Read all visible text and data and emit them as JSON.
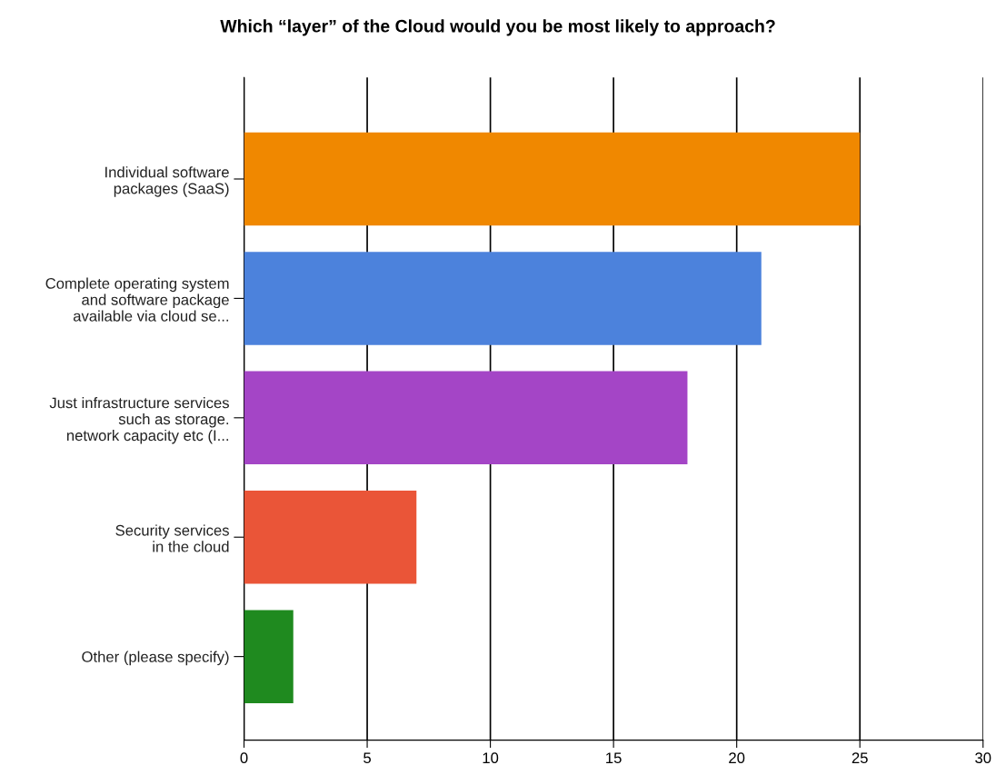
{
  "chart_data": {
    "type": "bar",
    "orientation": "horizontal",
    "title": "Which “layer” of the Cloud would you be most likely to approach?",
    "categories": [
      "Individual software\npackages (SaaS)",
      "Complete operating system\nand software package\navailable via cloud se...",
      "Just infrastructure services\nsuch as storage.\nnetwork capacity etc (I...",
      "Security services\nin the cloud",
      "Other (please specify)"
    ],
    "values": [
      25,
      21,
      18,
      7,
      2
    ],
    "colors": [
      "#f08800",
      "#4c82dc",
      "#a445c6",
      "#ea5538",
      "#1f8a1f"
    ],
    "xlim": [
      0,
      30
    ],
    "xticks": [
      0,
      5,
      10,
      15,
      20,
      25,
      30
    ],
    "grid": "x",
    "legend": false
  }
}
